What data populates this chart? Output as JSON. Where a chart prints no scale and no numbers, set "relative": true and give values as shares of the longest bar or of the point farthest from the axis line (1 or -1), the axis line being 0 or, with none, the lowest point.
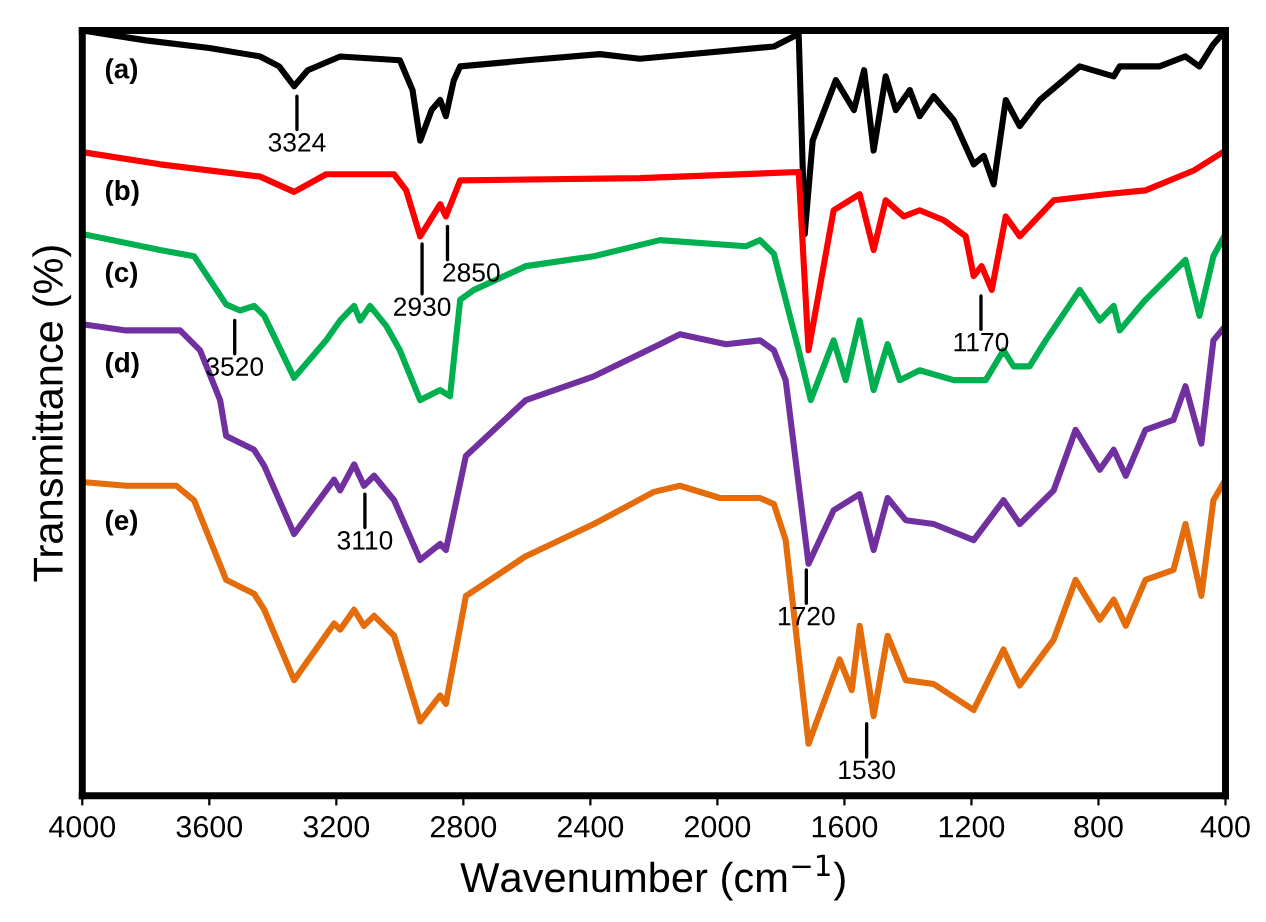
{
  "chart_data": {
    "type": "line",
    "relative": true,
    "xlabel": "Wavenumber (cm$^{−1}$)",
    "ylabel": "Transmittance (%)",
    "xlim": [
      4000,
      400
    ],
    "xticks": [
      4000,
      3600,
      3200,
      2800,
      2400,
      2000,
      1600,
      1200,
      800,
      400
    ],
    "grid": false,
    "legend": false,
    "marker": "none",
    "line_style": "solid",
    "tick_labels": "x",
    "series": [
      {
        "name": "(a)",
        "color": "#000000",
        "x": [
          4000,
          3800,
          3600,
          3440,
          3380,
          3333,
          3290,
          3188,
          3000,
          2960,
          2936,
          2900,
          2873,
          2855,
          2830,
          2810,
          2600,
          2370,
          2244,
          1822,
          1760,
          1744,
          1725,
          1700,
          1627,
          1570,
          1538,
          1508,
          1470,
          1438,
          1394,
          1363,
          1319,
          1256,
          1193,
          1161,
          1130,
          1092,
          1048,
          985,
          859,
          752,
          733,
          608,
          526,
          482,
          438,
          400
        ],
        "values": [
          1.0,
          0.987,
          0.977,
          0.966,
          0.953,
          0.927,
          0.948,
          0.966,
          0.961,
          0.922,
          0.856,
          0.896,
          0.909,
          0.888,
          0.935,
          0.953,
          0.961,
          0.969,
          0.963,
          0.979,
          0.992,
          0.995,
          0.734,
          0.856,
          0.935,
          0.896,
          0.948,
          0.843,
          0.94,
          0.896,
          0.922,
          0.888,
          0.914,
          0.883,
          0.825,
          0.836,
          0.799,
          0.909,
          0.875,
          0.909,
          0.953,
          0.94,
          0.953,
          0.953,
          0.966,
          0.953,
          0.982,
          1.0
        ]
      },
      {
        "name": "(b)",
        "color": "#ff0000",
        "x": [
          4000,
          3755,
          3440,
          3333,
          3232,
          3018,
          2980,
          2936,
          2873,
          2855,
          2810,
          2244,
          1744,
          1713,
          1634,
          1552,
          1508,
          1470,
          1413,
          1363,
          1287,
          1218,
          1193,
          1168,
          1136,
          1092,
          1048,
          941,
          778,
          652,
          500,
          400
        ],
        "values": [
          0.841,
          0.825,
          0.809,
          0.789,
          0.812,
          0.812,
          0.791,
          0.731,
          0.773,
          0.757,
          0.804,
          0.807,
          0.815,
          0.582,
          0.765,
          0.786,
          0.713,
          0.778,
          0.757,
          0.765,
          0.752,
          0.731,
          0.679,
          0.692,
          0.661,
          0.757,
          0.731,
          0.778,
          0.786,
          0.791,
          0.817,
          0.843
        ]
      },
      {
        "name": "(c)",
        "color": "#00b050",
        "x": [
          4000,
          3755,
          3648,
          3547,
          3503,
          3459,
          3427,
          3333,
          3232,
          3188,
          3144,
          3125,
          3094,
          3043,
          3000,
          2936,
          2873,
          2842,
          2810,
          2766,
          2603,
          2389,
          2181,
          1910,
          1866,
          1822,
          1785,
          1744,
          1706,
          1634,
          1596,
          1552,
          1508,
          1464,
          1426,
          1363,
          1256,
          1155,
          1099,
          1067,
          1017,
          966,
          859,
          796,
          752,
          733,
          652,
          526,
          482,
          438,
          400
        ],
        "values": [
          0.734,
          0.713,
          0.705,
          0.642,
          0.634,
          0.64,
          0.627,
          0.546,
          0.595,
          0.621,
          0.64,
          0.621,
          0.64,
          0.614,
          0.582,
          0.517,
          0.53,
          0.522,
          0.648,
          0.661,
          0.692,
          0.705,
          0.726,
          0.718,
          0.726,
          0.708,
          0.648,
          0.582,
          0.517,
          0.595,
          0.543,
          0.621,
          0.53,
          0.59,
          0.543,
          0.556,
          0.543,
          0.543,
          0.582,
          0.561,
          0.561,
          0.595,
          0.661,
          0.621,
          0.64,
          0.608,
          0.648,
          0.7,
          0.627,
          0.705,
          0.734
        ]
      },
      {
        "name": "(d)",
        "color": "#7030a0",
        "x": [
          4000,
          3862,
          3692,
          3629,
          3566,
          3547,
          3459,
          3427,
          3333,
          3207,
          3188,
          3144,
          3113,
          3081,
          3018,
          2936,
          2873,
          2855,
          2792,
          2603,
          2389,
          2181,
          2118,
          1973,
          1866,
          1822,
          1785,
          1713,
          1634,
          1552,
          1508,
          1464,
          1407,
          1319,
          1193,
          1099,
          1048,
          941,
          872,
          796,
          752,
          714,
          652,
          564,
          526,
          476,
          438,
          400
        ],
        "values": [
          0.616,
          0.608,
          0.608,
          0.582,
          0.517,
          0.47,
          0.452,
          0.431,
          0.342,
          0.413,
          0.399,
          0.433,
          0.405,
          0.418,
          0.386,
          0.308,
          0.329,
          0.321,
          0.444,
          0.517,
          0.548,
          0.59,
          0.603,
          0.59,
          0.595,
          0.582,
          0.543,
          0.303,
          0.373,
          0.394,
          0.321,
          0.389,
          0.36,
          0.355,
          0.334,
          0.386,
          0.355,
          0.399,
          0.478,
          0.426,
          0.452,
          0.418,
          0.478,
          0.491,
          0.535,
          0.46,
          0.595,
          0.614
        ]
      },
      {
        "name": "(e)",
        "color": "#e46c0a",
        "x": [
          4000,
          3862,
          3704,
          3648,
          3547,
          3459,
          3427,
          3333,
          3207,
          3188,
          3144,
          3113,
          3081,
          3018,
          2936,
          2873,
          2855,
          2792,
          2603,
          2389,
          2200,
          2118,
          1992,
          1866,
          1822,
          1785,
          1713,
          1615,
          1577,
          1552,
          1508,
          1464,
          1407,
          1319,
          1193,
          1099,
          1048,
          941,
          872,
          796,
          752,
          714,
          652,
          564,
          526,
          476,
          438,
          400
        ],
        "values": [
          0.41,
          0.405,
          0.405,
          0.386,
          0.282,
          0.264,
          0.243,
          0.151,
          0.225,
          0.217,
          0.243,
          0.222,
          0.235,
          0.209,
          0.097,
          0.131,
          0.12,
          0.261,
          0.313,
          0.355,
          0.397,
          0.405,
          0.389,
          0.389,
          0.381,
          0.334,
          0.068,
          0.178,
          0.138,
          0.222,
          0.104,
          0.209,
          0.151,
          0.146,
          0.112,
          0.191,
          0.144,
          0.204,
          0.282,
          0.23,
          0.256,
          0.222,
          0.282,
          0.295,
          0.355,
          0.261,
          0.386,
          0.413
        ]
      }
    ],
    "annotations": [
      {
        "text": "3324",
        "x": 3324,
        "y": 0.914
      },
      {
        "text": "2930",
        "x": 2930,
        "y": 0.721
      },
      {
        "text": "2850",
        "x": 2850,
        "y": 0.744
      },
      {
        "text": "1170",
        "x": 1170,
        "y": 0.653
      },
      {
        "text": "3520",
        "x": 3520,
        "y": 0.621
      },
      {
        "text": "3110",
        "x": 3110,
        "y": 0.394
      },
      {
        "text": "1720",
        "x": 1720,
        "y": 0.295
      },
      {
        "text": "1530",
        "x": 1530,
        "y": 0.094
      }
    ]
  }
}
